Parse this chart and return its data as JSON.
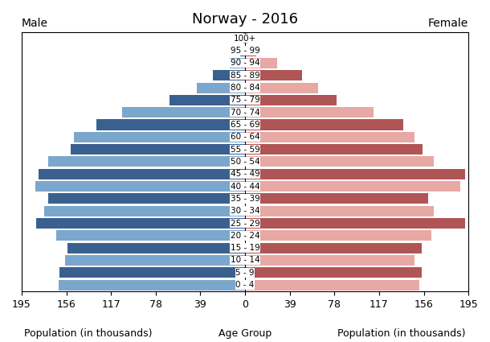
{
  "title": "Norway - 2016",
  "age_groups": [
    "0 - 4",
    "5 - 9",
    "10 - 14",
    "15 - 19",
    "20 - 24",
    "25 - 29",
    "30 - 34",
    "35 - 39",
    "40 - 44",
    "45 - 49",
    "50 - 54",
    "55 - 59",
    "60 - 64",
    "65 - 69",
    "70 - 74",
    "75 - 79",
    "80 - 84",
    "85 - 89",
    "90 - 94",
    "95 - 99",
    "100+"
  ],
  "male": [
    163.0,
    162.0,
    157.0,
    155.0,
    165.0,
    182.0,
    175.0,
    172.0,
    183.0,
    180.0,
    172.0,
    152.0,
    149.0,
    130.0,
    107.0,
    66.0,
    42.0,
    28.0,
    13.5,
    4.5,
    1.2
  ],
  "female": [
    152.0,
    154.0,
    148.0,
    154.0,
    163.0,
    192.0,
    165.0,
    160.0,
    188.0,
    192.0,
    165.0,
    155.0,
    148.0,
    138.0,
    112.0,
    80.0,
    64.0,
    50.0,
    28.0,
    10.0,
    2.5
  ],
  "male_color_even": "#7ba7cc",
  "male_color_odd": "#3a6090",
  "female_color_even": "#e8a8a4",
  "female_color_odd": "#b05555",
  "xlabel_left": "Population (in thousands)",
  "xlabel_center": "Age Group",
  "xlabel_right": "Population (in thousands)",
  "label_male": "Male",
  "label_female": "Female",
  "xlim": 195,
  "xticks": [
    0,
    39,
    78,
    117,
    156,
    195
  ],
  "background_color": "#ffffff",
  "title_fontsize": 13,
  "label_fontsize": 10,
  "tick_fontsize": 9,
  "age_label_fontsize": 7.5
}
